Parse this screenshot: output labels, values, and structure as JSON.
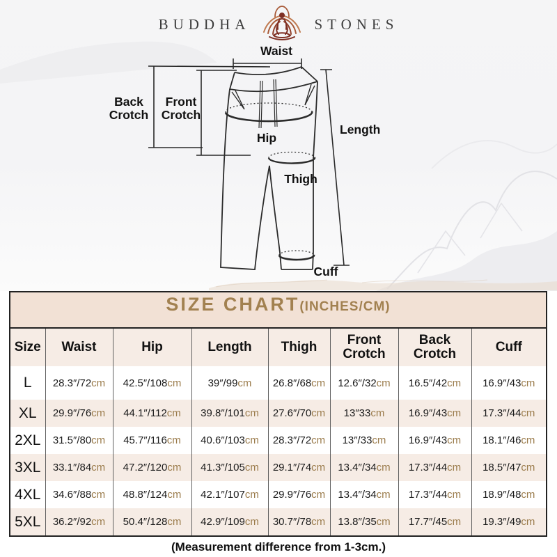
{
  "brand": {
    "left": "BUDDHA",
    "right": "STONES",
    "logo_icon": "lotus-meditation-icon"
  },
  "diagram": {
    "labels": {
      "waist": "Waist",
      "back_crotch_line1": "Back",
      "back_crotch_line2": "Crotch",
      "front_crotch_line1": "Front",
      "front_crotch_line2": "Crotch",
      "hip": "Hip",
      "length": "Length",
      "thigh": "Thigh",
      "cuff": "Cuff"
    }
  },
  "size_chart": {
    "title": "SIZE CHART",
    "title_suffix": "(INCHES/CM)",
    "unit": "cm",
    "headers": [
      "Size",
      "Waist",
      "Hip",
      "Length",
      "Thigh",
      "Front Crotch",
      "Back Crotch",
      "Cuff"
    ],
    "rows": [
      {
        "size": "L",
        "cells": [
          "28.3″/72cm",
          "42.5″/108cm",
          "39″/99cm",
          "26.8″/68cm",
          "12.6″/32cm",
          "16.5″/42cm",
          "16.9″/43cm"
        ]
      },
      {
        "size": "XL",
        "cells": [
          "29.9″/76cm",
          "44.1″/112cm",
          "39.8″/101cm",
          "27.6″/70cm",
          "13″33cm",
          "16.9″/43cm",
          "17.3″/44cm"
        ]
      },
      {
        "size": "2XL",
        "cells": [
          "31.5″/80cm",
          "45.7″/116cm",
          "40.6″/103cm",
          "28.3″/72cm",
          "13″/33cm",
          "16.9″/43cm",
          "18.1″/46cm"
        ]
      },
      {
        "size": "3XL",
        "cells": [
          "33.1″/84cm",
          "47.2″/120cm",
          "41.3″/105cm",
          "29.1″/74cm",
          "13.4″/34cm",
          "17.3″/44cm",
          "18.5″/47cm"
        ]
      },
      {
        "size": "4XL",
        "cells": [
          "34.6″/88cm",
          "48.8″/124cm",
          "42.1″/107cm",
          "29.9″/76cm",
          "13.4″/34cm",
          "17.3″/44cm",
          "18.9″/48cm"
        ]
      },
      {
        "size": "5XL",
        "cells": [
          "36.2″/92cm",
          "50.4″/128cm",
          "42.9″/109cm",
          "30.7″/78cm",
          "13.8″/35cm",
          "17.7″/45cm",
          "19.3″/49cm"
        ]
      }
    ],
    "note": "(Measurement difference from 1-3cm.)"
  },
  "colors": {
    "title_gold": "#a28150",
    "unit_brown": "#9b7c4c",
    "title_band_bg": "#f2e1d5",
    "alt_row_bg": "#f6ece5",
    "table_border": "#222222",
    "logo_maroon": "#7e2f23",
    "logo_petal": "#c07a50"
  }
}
